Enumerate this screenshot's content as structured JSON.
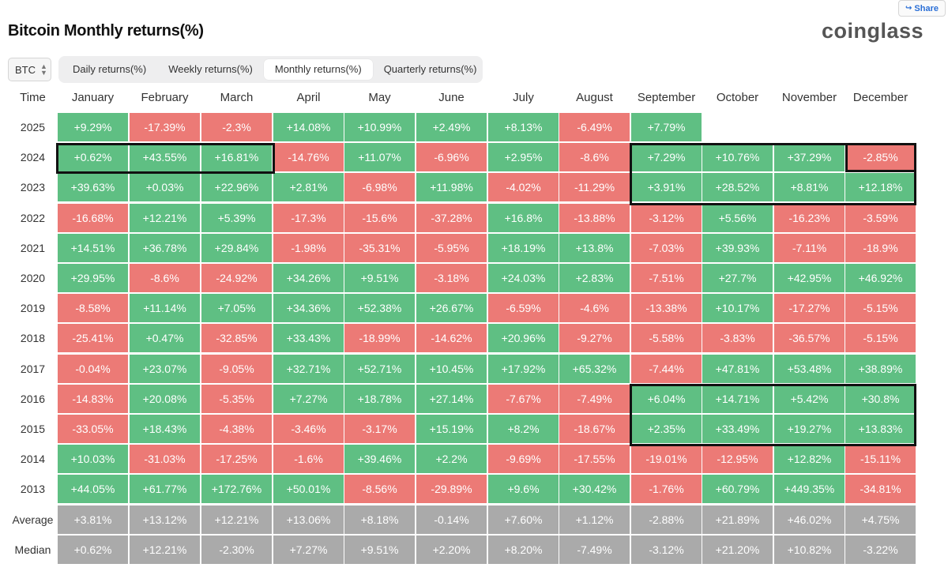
{
  "share_label": "Share",
  "page_title": "Bitcoin Monthly returns(%)",
  "logo_text": "coinglass",
  "asset_select": {
    "value": "BTC"
  },
  "tabs": [
    {
      "label": "Daily returns(%)"
    },
    {
      "label": "Weekly returns(%)"
    },
    {
      "label": "Monthly returns(%)",
      "active": true
    },
    {
      "label": "Quarterly returns(%)"
    }
  ],
  "colors": {
    "positive": "#5fbf83",
    "negative": "#ec7a76",
    "summary": "#aaaaaa",
    "highlight_border": "#111111"
  },
  "table": {
    "headers": [
      "Time",
      "January",
      "February",
      "March",
      "April",
      "May",
      "June",
      "July",
      "August",
      "September",
      "October",
      "November",
      "December"
    ],
    "rows": [
      {
        "label": "2025",
        "values": [
          "+9.29%",
          "-17.39%",
          "-2.3%",
          "+14.08%",
          "+10.99%",
          "+2.49%",
          "+8.13%",
          "-6.49%",
          "+7.79%",
          "",
          "",
          ""
        ]
      },
      {
        "label": "2024",
        "values": [
          "+0.62%",
          "+43.55%",
          "+16.81%",
          "-14.76%",
          "+11.07%",
          "-6.96%",
          "+2.95%",
          "-8.6%",
          "+7.29%",
          "+10.76%",
          "+37.29%",
          "-2.85%"
        ]
      },
      {
        "label": "2023",
        "values": [
          "+39.63%",
          "+0.03%",
          "+22.96%",
          "+2.81%",
          "-6.98%",
          "+11.98%",
          "-4.02%",
          "-11.29%",
          "+3.91%",
          "+28.52%",
          "+8.81%",
          "+12.18%"
        ]
      },
      {
        "label": "2022",
        "values": [
          "-16.68%",
          "+12.21%",
          "+5.39%",
          "-17.3%",
          "-15.6%",
          "-37.28%",
          "+16.8%",
          "-13.88%",
          "-3.12%",
          "+5.56%",
          "-16.23%",
          "-3.59%"
        ]
      },
      {
        "label": "2021",
        "values": [
          "+14.51%",
          "+36.78%",
          "+29.84%",
          "-1.98%",
          "-35.31%",
          "-5.95%",
          "+18.19%",
          "+13.8%",
          "-7.03%",
          "+39.93%",
          "-7.11%",
          "-18.9%"
        ]
      },
      {
        "label": "2020",
        "values": [
          "+29.95%",
          "-8.6%",
          "-24.92%",
          "+34.26%",
          "+9.51%",
          "-3.18%",
          "+24.03%",
          "+2.83%",
          "-7.51%",
          "+27.7%",
          "+42.95%",
          "+46.92%"
        ]
      },
      {
        "label": "2019",
        "values": [
          "-8.58%",
          "+11.14%",
          "+7.05%",
          "+34.36%",
          "+52.38%",
          "+26.67%",
          "-6.59%",
          "-4.6%",
          "-13.38%",
          "+10.17%",
          "-17.27%",
          "-5.15%"
        ]
      },
      {
        "label": "2018",
        "values": [
          "-25.41%",
          "+0.47%",
          "-32.85%",
          "+33.43%",
          "-18.99%",
          "-14.62%",
          "+20.96%",
          "-9.27%",
          "-5.58%",
          "-3.83%",
          "-36.57%",
          "-5.15%"
        ]
      },
      {
        "label": "2017",
        "values": [
          "-0.04%",
          "+23.07%",
          "-9.05%",
          "+32.71%",
          "+52.71%",
          "+10.45%",
          "+17.92%",
          "+65.32%",
          "-7.44%",
          "+47.81%",
          "+53.48%",
          "+38.89%"
        ]
      },
      {
        "label": "2016",
        "values": [
          "-14.83%",
          "+20.08%",
          "-5.35%",
          "+7.27%",
          "+18.78%",
          "+27.14%",
          "-7.67%",
          "-7.49%",
          "+6.04%",
          "+14.71%",
          "+5.42%",
          "+30.8%"
        ]
      },
      {
        "label": "2015",
        "values": [
          "-33.05%",
          "+18.43%",
          "-4.38%",
          "-3.46%",
          "-3.17%",
          "+15.19%",
          "+8.2%",
          "-18.67%",
          "+2.35%",
          "+33.49%",
          "+19.27%",
          "+13.83%"
        ]
      },
      {
        "label": "2014",
        "values": [
          "+10.03%",
          "-31.03%",
          "-17.25%",
          "-1.6%",
          "+39.46%",
          "+2.2%",
          "-9.69%",
          "-17.55%",
          "-19.01%",
          "-12.95%",
          "+12.82%",
          "-15.11%"
        ]
      },
      {
        "label": "2013",
        "values": [
          "+44.05%",
          "+61.77%",
          "+172.76%",
          "+50.01%",
          "-8.56%",
          "-29.89%",
          "+9.6%",
          "+30.42%",
          "-1.76%",
          "+60.79%",
          "+449.35%",
          "-34.81%"
        ]
      }
    ],
    "summary_rows": [
      {
        "label": "Average",
        "values": [
          "+3.81%",
          "+13.12%",
          "+12.21%",
          "+13.06%",
          "+8.18%",
          "-0.14%",
          "+7.60%",
          "+1.12%",
          "-2.88%",
          "+21.89%",
          "+46.02%",
          "+4.75%"
        ]
      },
      {
        "label": "Median",
        "values": [
          "+0.62%",
          "+12.21%",
          "-2.30%",
          "+7.27%",
          "+9.51%",
          "+2.20%",
          "+8.20%",
          "-7.49%",
          "-3.12%",
          "+21.20%",
          "+10.82%",
          "-3.22%"
        ]
      }
    ]
  }
}
